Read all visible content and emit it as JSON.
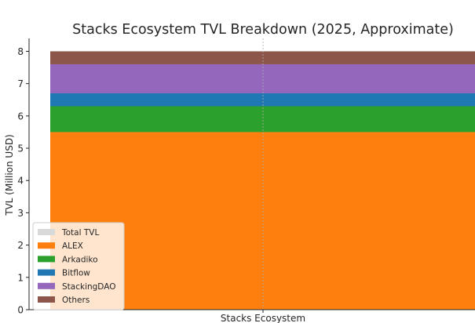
{
  "chart_data": {
    "type": "bar",
    "stacked": true,
    "title": "Stacks Ecosystem TVL Breakdown (2025, Approximate)",
    "xlabel": "",
    "ylabel": "TVL (Million USD)",
    "categories": [
      "Stacks Ecosystem"
    ],
    "ylim": [
      0,
      8.4
    ],
    "yticks": [
      0,
      1,
      2,
      3,
      4,
      5,
      6,
      7,
      8
    ],
    "grid": true,
    "legend_position": "lower-left",
    "background_series": {
      "name": "Total TVL",
      "value": 8,
      "color": "#d9d9d9"
    },
    "series": [
      {
        "name": "ALEX",
        "values": [
          5.5
        ],
        "color": "#ff7f0e"
      },
      {
        "name": "Arkadiko",
        "values": [
          0.8
        ],
        "color": "#2ca02c"
      },
      {
        "name": "Bitflow",
        "values": [
          0.4
        ],
        "color": "#1f77b4"
      },
      {
        "name": "StackingDAO",
        "values": [
          0.9
        ],
        "color": "#9467bd"
      },
      {
        "name": "Others",
        "values": [
          0.4
        ],
        "color": "#8c564b"
      }
    ]
  }
}
